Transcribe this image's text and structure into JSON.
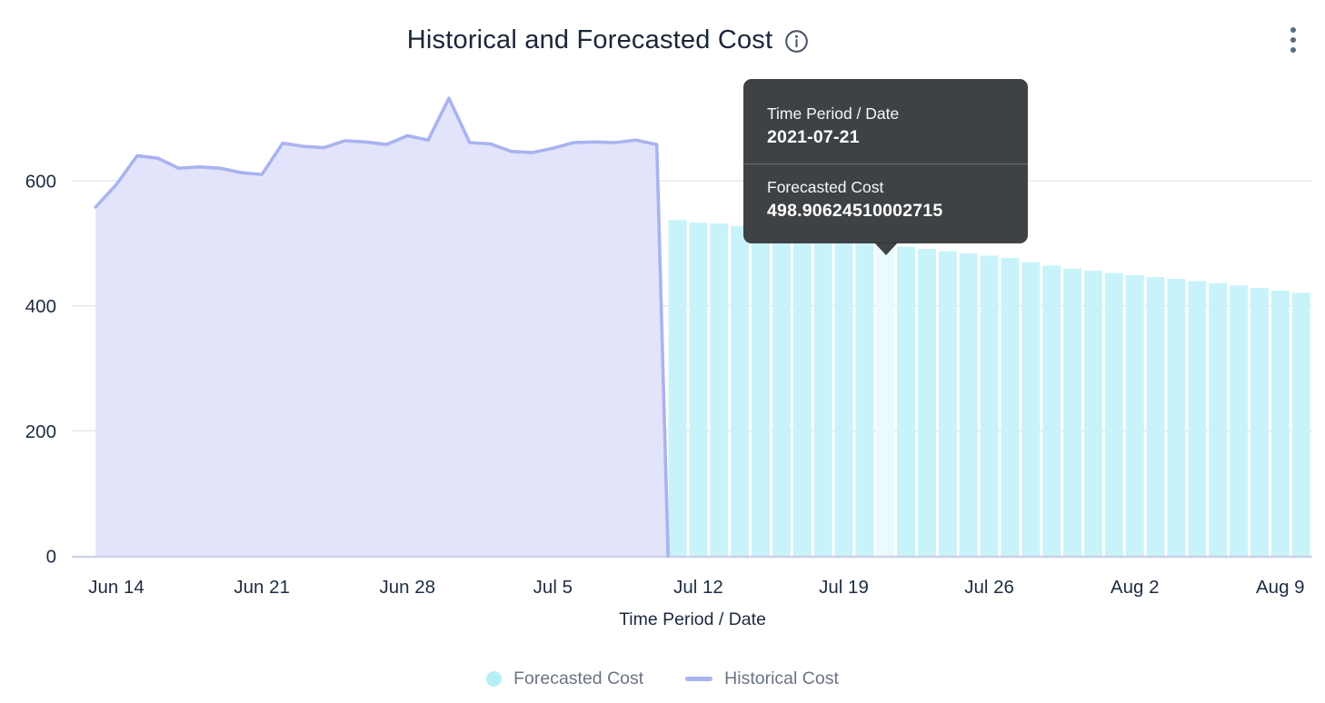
{
  "header": {
    "title": "Historical and Forecasted Cost",
    "info_icon": "info-circle-icon",
    "menu_icon": "kebab-vertical-icon"
  },
  "chart_data": {
    "type": "mixed",
    "title": "Historical and Forecasted Cost",
    "xlabel": "Time Period / Date",
    "ylabel": "",
    "ylim": [
      0,
      755
    ],
    "grid": "horizontal",
    "legend_position": "bottom",
    "y_ticks": [
      0,
      200,
      400,
      600
    ],
    "x_ticks": [
      {
        "label": "Jun 14",
        "date": "2021-06-14"
      },
      {
        "label": "Jun 21",
        "date": "2021-06-21"
      },
      {
        "label": "Jun 28",
        "date": "2021-06-28"
      },
      {
        "label": "Jul 5",
        "date": "2021-07-05"
      },
      {
        "label": "Jul 12",
        "date": "2021-07-12"
      },
      {
        "label": "Jul 19",
        "date": "2021-07-19"
      },
      {
        "label": "Jul 26",
        "date": "2021-07-26"
      },
      {
        "label": "Aug 2",
        "date": "2021-08-02"
      },
      {
        "label": "Aug 9",
        "date": "2021-08-09"
      }
    ],
    "highlighted_date": "2021-07-21",
    "series": [
      {
        "name": "Historical Cost",
        "type": "area",
        "line_color": "#a9b3ef",
        "fill_color": "#dee1fb",
        "dates": [
          "2021-06-13",
          "2021-06-14",
          "2021-06-15",
          "2021-06-16",
          "2021-06-17",
          "2021-06-18",
          "2021-06-19",
          "2021-06-20",
          "2021-06-21",
          "2021-06-22",
          "2021-06-23",
          "2021-06-24",
          "2021-06-25",
          "2021-06-26",
          "2021-06-27",
          "2021-06-28",
          "2021-06-29",
          "2021-06-30",
          "2021-07-01",
          "2021-07-02",
          "2021-07-03",
          "2021-07-04",
          "2021-07-05",
          "2021-07-06",
          "2021-07-07",
          "2021-07-08",
          "2021-07-09",
          "2021-07-10"
        ],
        "values": [
          558,
          594,
          640,
          636,
          620,
          622,
          620,
          613,
          610,
          660,
          655,
          653,
          664,
          662,
          658,
          672,
          665,
          732,
          661,
          659,
          647,
          645,
          652,
          661,
          662,
          661,
          665,
          658
        ]
      },
      {
        "name": "Forecasted Cost",
        "type": "bar",
        "bar_color": "#c9f3fa",
        "highlight_color": "#e9fbfe",
        "dates": [
          "2021-07-11",
          "2021-07-12",
          "2021-07-13",
          "2021-07-14",
          "2021-07-15",
          "2021-07-16",
          "2021-07-17",
          "2021-07-18",
          "2021-07-19",
          "2021-07-20",
          "2021-07-21",
          "2021-07-22",
          "2021-07-23",
          "2021-07-24",
          "2021-07-25",
          "2021-07-26",
          "2021-07-27",
          "2021-07-28",
          "2021-07-29",
          "2021-07-30",
          "2021-07-31",
          "2021-08-01",
          "2021-08-02",
          "2021-08-03",
          "2021-08-04",
          "2021-08-05",
          "2021-08-06",
          "2021-08-07",
          "2021-08-08",
          "2021-08-09",
          "2021-08-10"
        ],
        "values": [
          537.2,
          533.1,
          531.8,
          527.4,
          523.9,
          520.6,
          516.2,
          512.8,
          508.3,
          503.5,
          498.90624510002715,
          494.7,
          490.9,
          487.2,
          483.6,
          480.1,
          476.5,
          469.8,
          464.3,
          459.7,
          455.9,
          452.4,
          449.2,
          446.0,
          442.9,
          439.5,
          436.1,
          432.4,
          428.6,
          424.3,
          420.8
        ]
      }
    ]
  },
  "tooltip": {
    "title_label": "Time Period / Date",
    "title_value": "2021-07-21",
    "series_label": "Forecasted Cost",
    "series_value": "498.90624510002715"
  },
  "legend": {
    "items": [
      {
        "label": "Forecasted Cost",
        "swatch": "circle",
        "color": "#b5f0f3"
      },
      {
        "label": "Historical Cost",
        "swatch": "line",
        "color": "#a9b3ef"
      }
    ]
  }
}
